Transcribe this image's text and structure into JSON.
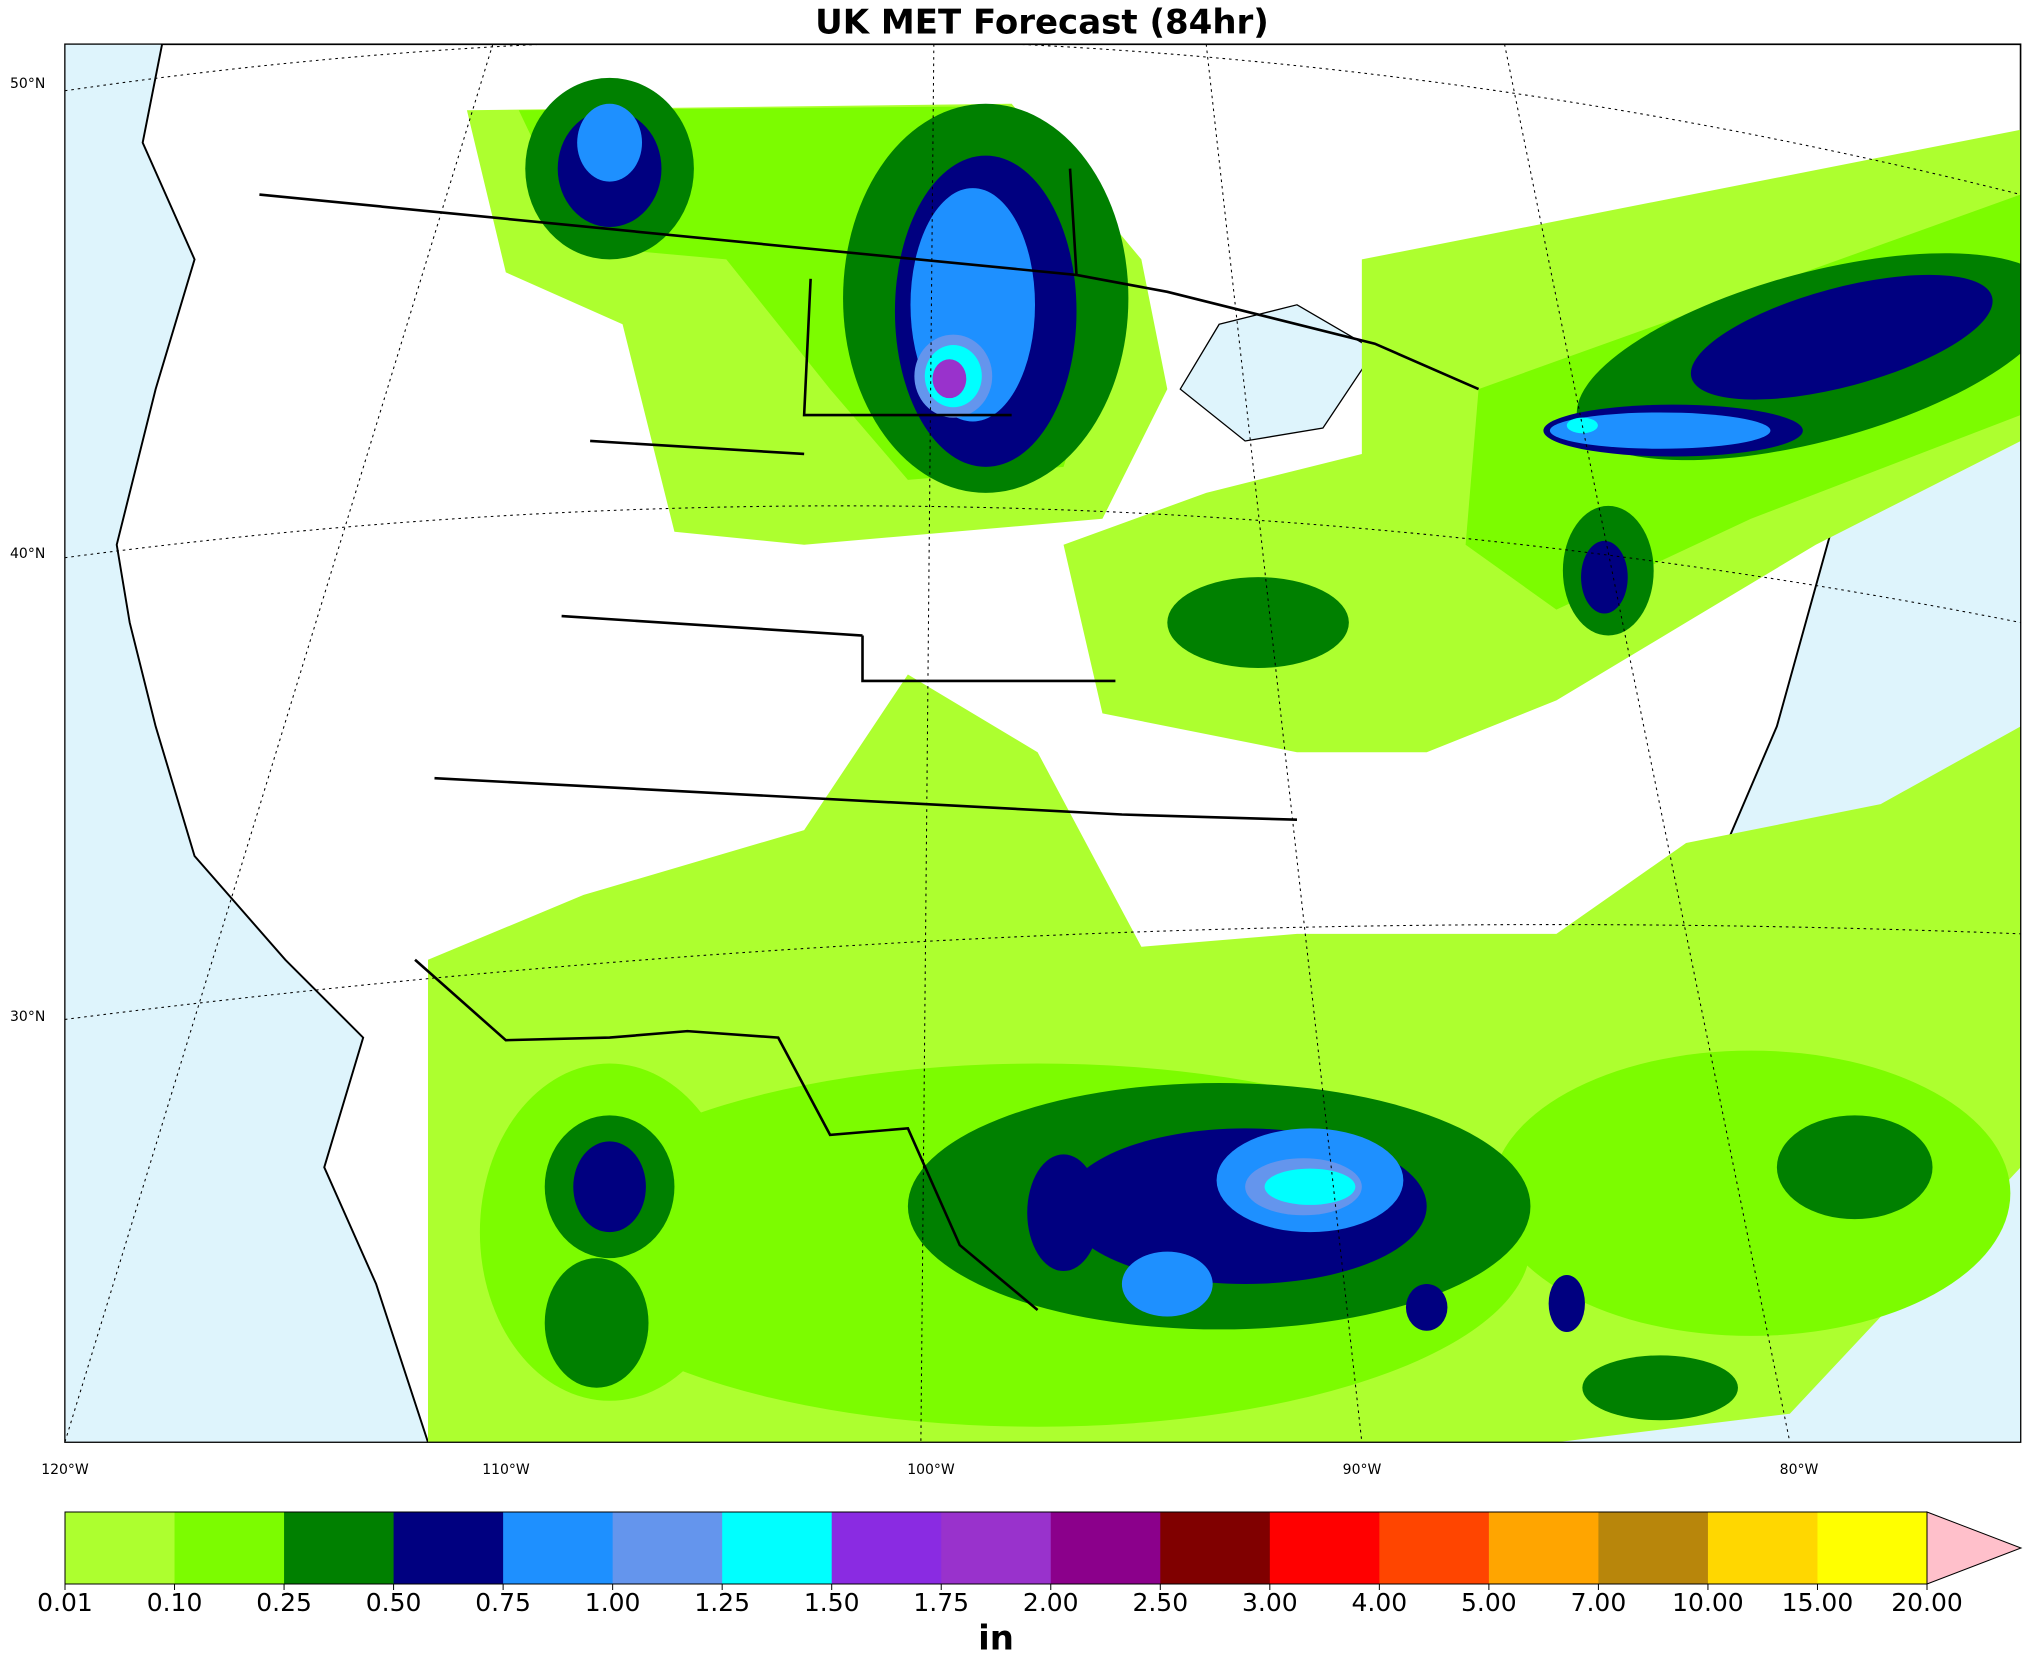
{
  "title": "UK MET Forecast (84hr)",
  "lat_labels": [
    "50°N",
    "40°N",
    "30°N"
  ],
  "lon_labels": [
    "120°W",
    "110°W",
    "100°W",
    "90°W",
    "80°W"
  ],
  "colorbar": {
    "ticks": [
      {
        "value": 0.01,
        "label": "0.01"
      },
      {
        "value": 0.1,
        "label": "0.10"
      },
      {
        "value": 0.25,
        "label": "0.25"
      },
      {
        "value": 0.5,
        "label": "0.50"
      },
      {
        "value": 0.75,
        "label": "0.75"
      },
      {
        "value": 1,
        "label": "1.00"
      },
      {
        "value": 1.25,
        "label": "1.25"
      },
      {
        "value": 1.5,
        "label": "1.50"
      },
      {
        "value": 1.75,
        "label": "1.75"
      },
      {
        "value": 2,
        "label": "2.00"
      },
      {
        "value": 2.5,
        "label": "2.50"
      },
      {
        "value": 3,
        "label": "3.00"
      },
      {
        "value": 4,
        "label": "4.00"
      },
      {
        "value": 5,
        "label": "5.00"
      },
      {
        "value": 7,
        "label": "7.00"
      },
      {
        "value": 10,
        "label": "10.00"
      },
      {
        "value": 15,
        "label": "15.00"
      },
      {
        "value": 20,
        "label": "20.00"
      }
    ],
    "colors": [
      "#adff2f",
      "#7cfc00",
      "#008000",
      "#000080",
      "#1e90ff",
      "#6495ed",
      "#00ffff",
      "#8a2be2",
      "#9932cc",
      "#8b008b",
      "#800000",
      "#ff0000",
      "#ff4500",
      "#ffa500",
      "#b8860b",
      "#ffd700",
      "#ffff00"
    ],
    "extend_color": "#ffc0cb",
    "label": "in"
  }
}
